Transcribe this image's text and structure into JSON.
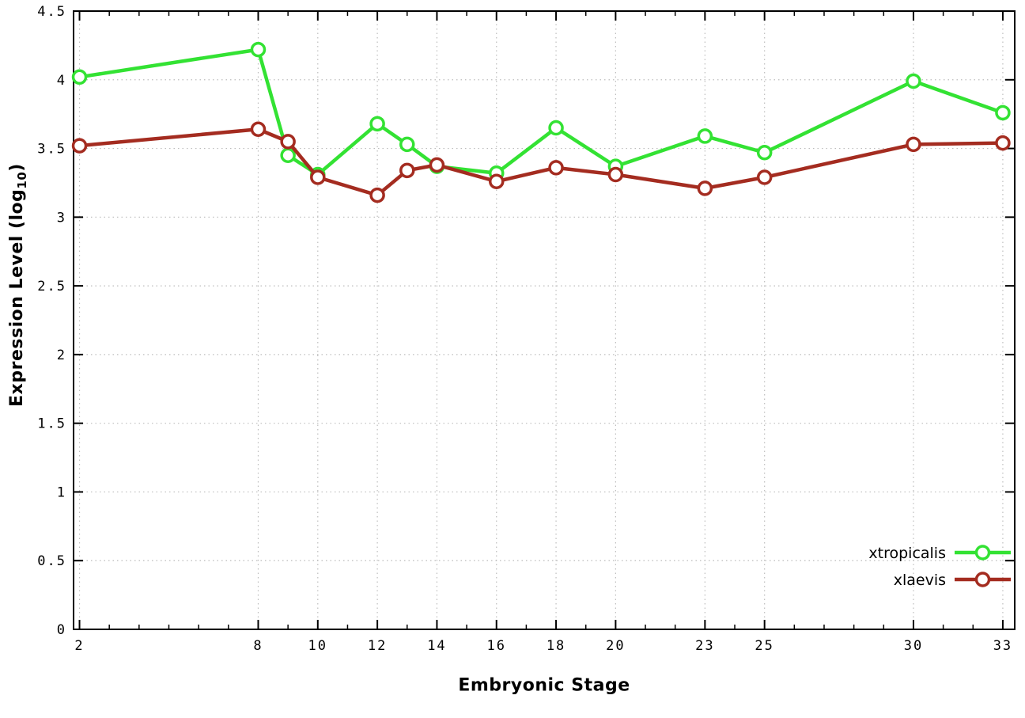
{
  "chart_data": {
    "type": "line",
    "title": "",
    "xlabel": "Embryonic Stage",
    "ylabel_pre": "Expression Level (log",
    "ylabel_sub": "10",
    "ylabel_post": ")",
    "x": [
      2,
      8,
      9,
      10,
      12,
      13,
      14,
      16,
      18,
      20,
      23,
      25,
      30,
      33
    ],
    "series": [
      {
        "name": "xtropicalis",
        "color": "#33e233",
        "marker": "open-circle",
        "values": [
          4.02,
          4.22,
          3.45,
          3.31,
          3.68,
          3.53,
          3.37,
          3.32,
          3.65,
          3.37,
          3.59,
          3.47,
          3.99,
          3.76
        ]
      },
      {
        "name": "xlaevis",
        "color": "#a42c20",
        "marker": "open-circle",
        "values": [
          3.52,
          3.64,
          3.55,
          3.29,
          3.16,
          3.34,
          3.38,
          3.26,
          3.36,
          3.31,
          3.21,
          3.29,
          3.53,
          3.54
        ]
      }
    ],
    "xlim": [
      1.8,
      33.4
    ],
    "ylim": [
      0,
      4.5
    ],
    "x_major_ticks": [
      2,
      8,
      10,
      12,
      14,
      16,
      18,
      20,
      23,
      25,
      30,
      33
    ],
    "x_minor_tick_step": 1,
    "y_major_ticks": [
      0,
      0.5,
      1,
      1.5,
      2,
      2.5,
      3,
      3.5,
      4,
      4.5
    ],
    "y_tick_labels": [
      "0",
      "0.5",
      "1",
      "1.5",
      "2",
      "2.5",
      "3",
      "3.5",
      "4",
      "4.5"
    ],
    "grid": true,
    "grid_color": "#bdbdbd",
    "border_color": "#000000",
    "legend_position": "bottom-right"
  }
}
